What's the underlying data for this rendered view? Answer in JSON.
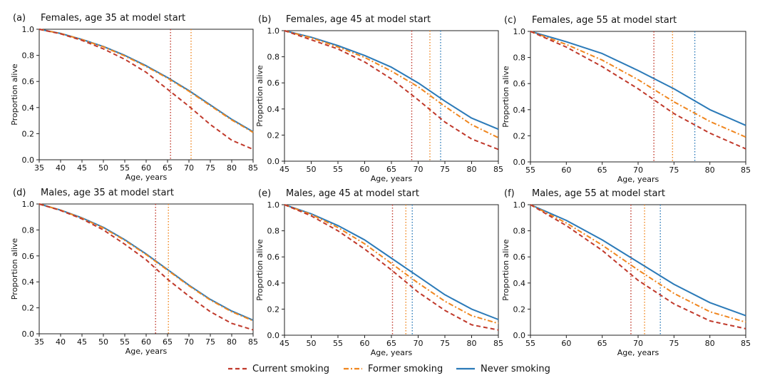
{
  "colors": {
    "current": "#c0392b",
    "former": "#f0861e",
    "never": "#2b7ab8"
  },
  "chart_data": [
    {
      "type": "line",
      "panel_label": "(a)",
      "title": "Females, age 35 at model start",
      "xlabel": "Age, years",
      "ylabel": "Proportion alive",
      "xlim": [
        35,
        85
      ],
      "ylim": [
        0,
        1.0
      ],
      "xticks": [
        35,
        40,
        45,
        50,
        55,
        60,
        65,
        70,
        75,
        80,
        85
      ],
      "yticks": [
        0.0,
        0.2,
        0.4,
        0.6,
        0.8,
        1.0
      ],
      "vlines": {
        "current": 65.7,
        "former": 70.5
      },
      "series": [
        {
          "name": "Current smoking",
          "x": [
            35,
            40,
            45,
            50,
            55,
            60,
            65,
            70,
            75,
            80,
            85
          ],
          "values": [
            1.0,
            0.965,
            0.915,
            0.85,
            0.77,
            0.67,
            0.54,
            0.41,
            0.27,
            0.15,
            0.08
          ]
        },
        {
          "name": "Former smoking",
          "x": [
            35,
            40,
            45,
            50,
            55,
            60,
            65,
            70,
            75,
            80,
            85
          ],
          "values": [
            1.0,
            0.967,
            0.92,
            0.865,
            0.795,
            0.715,
            0.625,
            0.525,
            0.415,
            0.305,
            0.21
          ]
        },
        {
          "name": "Never smoking",
          "x": [
            35,
            40,
            45,
            50,
            55,
            60,
            65,
            70,
            75,
            80,
            85
          ],
          "values": [
            1.0,
            0.968,
            0.922,
            0.868,
            0.8,
            0.72,
            0.63,
            0.53,
            0.42,
            0.31,
            0.215
          ]
        }
      ]
    },
    {
      "type": "line",
      "panel_label": "(b)",
      "title": "Females, age 45 at model start",
      "xlabel": "Age, years",
      "ylabel": "Proportion alive",
      "xlim": [
        45,
        85
      ],
      "ylim": [
        0,
        1.0
      ],
      "xticks": [
        45,
        50,
        55,
        60,
        65,
        70,
        75,
        80,
        85
      ],
      "yticks": [
        0.0,
        0.2,
        0.4,
        0.6,
        0.8,
        1.0
      ],
      "vlines": {
        "current": 68.8,
        "former": 72.2,
        "never": 74.2
      },
      "series": [
        {
          "name": "Current smoking",
          "x": [
            45,
            50,
            55,
            60,
            65,
            70,
            75,
            80,
            85
          ],
          "values": [
            1.0,
            0.93,
            0.86,
            0.76,
            0.63,
            0.47,
            0.3,
            0.17,
            0.09
          ]
        },
        {
          "name": "Former smoking",
          "x": [
            45,
            50,
            55,
            60,
            65,
            70,
            75,
            80,
            85
          ],
          "values": [
            1.0,
            0.945,
            0.875,
            0.795,
            0.69,
            0.57,
            0.42,
            0.28,
            0.18
          ]
        },
        {
          "name": "Never smoking",
          "x": [
            45,
            50,
            55,
            60,
            65,
            70,
            75,
            80,
            85
          ],
          "values": [
            1.0,
            0.95,
            0.885,
            0.81,
            0.72,
            0.6,
            0.46,
            0.33,
            0.245
          ]
        }
      ]
    },
    {
      "type": "line",
      "panel_label": "(c)",
      "title": "Females, age 55 at model start",
      "xlabel": "Age, years",
      "ylabel": "Proportion alive",
      "xlim": [
        55,
        85
      ],
      "ylim": [
        0,
        1.0
      ],
      "xticks": [
        55,
        60,
        65,
        70,
        75,
        80,
        85
      ],
      "yticks": [
        0.0,
        0.2,
        0.4,
        0.6,
        0.8,
        1.0
      ],
      "vlines": {
        "current": 72.2,
        "former": 74.8,
        "never": 77.9
      },
      "series": [
        {
          "name": "Current smoking",
          "x": [
            55,
            60,
            65,
            70,
            75,
            80,
            85
          ],
          "values": [
            1.0,
            0.88,
            0.73,
            0.56,
            0.37,
            0.22,
            0.1
          ]
        },
        {
          "name": "Former smoking",
          "x": [
            55,
            60,
            65,
            70,
            75,
            80,
            85
          ],
          "values": [
            1.0,
            0.9,
            0.78,
            0.63,
            0.46,
            0.31,
            0.19
          ]
        },
        {
          "name": "Never smoking",
          "x": [
            55,
            60,
            65,
            70,
            75,
            80,
            85
          ],
          "values": [
            1.0,
            0.92,
            0.83,
            0.7,
            0.56,
            0.4,
            0.28
          ]
        }
      ]
    },
    {
      "type": "line",
      "panel_label": "(d)",
      "title": "Males, age 35 at model start",
      "xlabel": "Age, years",
      "ylabel": "Proportion alive",
      "xlim": [
        35,
        85
      ],
      "ylim": [
        0,
        1.0
      ],
      "xticks": [
        35,
        40,
        45,
        50,
        55,
        60,
        65,
        70,
        75,
        80,
        85
      ],
      "yticks": [
        0.0,
        0.2,
        0.4,
        0.6,
        0.8,
        1.0
      ],
      "vlines": {
        "current": 62.2,
        "former": 65.2
      },
      "series": [
        {
          "name": "Current smoking",
          "x": [
            35,
            40,
            45,
            50,
            55,
            60,
            65,
            70,
            75,
            80,
            85
          ],
          "values": [
            1.0,
            0.95,
            0.885,
            0.8,
            0.69,
            0.57,
            0.42,
            0.29,
            0.17,
            0.08,
            0.03
          ]
        },
        {
          "name": "Former smoking",
          "x": [
            35,
            40,
            45,
            50,
            55,
            60,
            65,
            70,
            75,
            80,
            85
          ],
          "values": [
            1.0,
            0.952,
            0.89,
            0.815,
            0.72,
            0.61,
            0.49,
            0.37,
            0.26,
            0.17,
            0.1
          ]
        },
        {
          "name": "Never smoking",
          "x": [
            35,
            40,
            45,
            50,
            55,
            60,
            65,
            70,
            75,
            80,
            85
          ],
          "values": [
            1.0,
            0.953,
            0.893,
            0.82,
            0.725,
            0.615,
            0.495,
            0.375,
            0.265,
            0.175,
            0.105
          ]
        }
      ]
    },
    {
      "type": "line",
      "panel_label": "(e)",
      "title": "Males, age 45 at model start",
      "xlabel": "Age, years",
      "ylabel": "Proportion alive",
      "xlim": [
        45,
        85
      ],
      "ylim": [
        0,
        1.0
      ],
      "xticks": [
        45,
        50,
        55,
        60,
        65,
        70,
        75,
        80,
        85
      ],
      "yticks": [
        0.0,
        0.2,
        0.4,
        0.6,
        0.8,
        1.0
      ],
      "vlines": {
        "current": 65.2,
        "former": 67.7,
        "never": 68.9
      },
      "series": [
        {
          "name": "Current smoking",
          "x": [
            45,
            50,
            55,
            60,
            65,
            70,
            75,
            80,
            85
          ],
          "values": [
            1.0,
            0.915,
            0.8,
            0.66,
            0.5,
            0.33,
            0.19,
            0.08,
            0.04
          ]
        },
        {
          "name": "Former smoking",
          "x": [
            45,
            50,
            55,
            60,
            65,
            70,
            75,
            80,
            85
          ],
          "values": [
            1.0,
            0.925,
            0.825,
            0.7,
            0.55,
            0.4,
            0.26,
            0.15,
            0.09
          ]
        },
        {
          "name": "Never smoking",
          "x": [
            45,
            50,
            55,
            60,
            65,
            70,
            75,
            80,
            85
          ],
          "values": [
            1.0,
            0.93,
            0.84,
            0.73,
            0.59,
            0.45,
            0.31,
            0.2,
            0.12
          ]
        }
      ]
    },
    {
      "type": "line",
      "panel_label": "(f)",
      "title": "Males, age 55 at model start",
      "xlabel": "Age, years",
      "ylabel": "Proportion alive",
      "xlim": [
        55,
        85
      ],
      "ylim": [
        0,
        1.0
      ],
      "xticks": [
        55,
        60,
        65,
        70,
        75,
        80,
        85
      ],
      "yticks": [
        0.0,
        0.2,
        0.4,
        0.6,
        0.8,
        1.0
      ],
      "vlines": {
        "current": 69.0,
        "former": 70.9,
        "never": 73.1
      },
      "series": [
        {
          "name": "Current smoking",
          "x": [
            55,
            60,
            65,
            70,
            75,
            80,
            85
          ],
          "values": [
            1.0,
            0.84,
            0.65,
            0.42,
            0.24,
            0.11,
            0.05
          ]
        },
        {
          "name": "Former smoking",
          "x": [
            55,
            60,
            65,
            70,
            75,
            80,
            85
          ],
          "values": [
            1.0,
            0.86,
            0.69,
            0.5,
            0.32,
            0.18,
            0.1
          ]
        },
        {
          "name": "Never smoking",
          "x": [
            55,
            60,
            65,
            70,
            75,
            80,
            85
          ],
          "values": [
            1.0,
            0.88,
            0.73,
            0.56,
            0.39,
            0.25,
            0.15
          ]
        }
      ]
    }
  ],
  "legend": {
    "current": "Current smoking",
    "former": "Former smoking",
    "never": "Never smoking"
  }
}
